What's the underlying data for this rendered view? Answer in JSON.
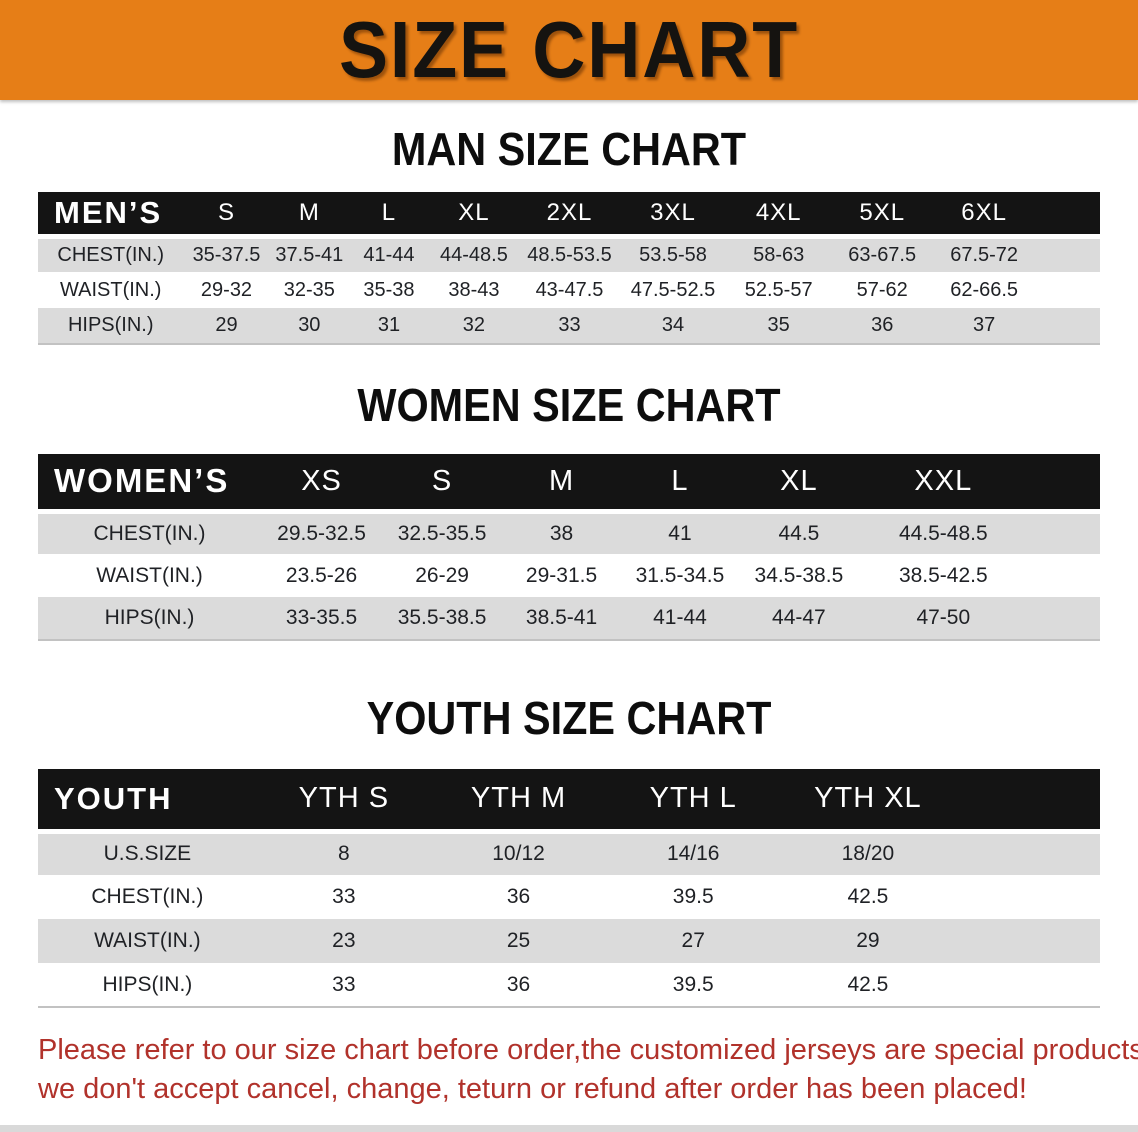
{
  "banner": {
    "title": "SIZE CHART"
  },
  "man_chart": {
    "heading": "MAN SIZE CHART",
    "table": {
      "group_label": "MEN’S",
      "sizes": [
        "S",
        "M",
        "L",
        "XL",
        "2XL",
        "3XL",
        "4XL",
        "5XL",
        "6XL"
      ],
      "rows": [
        {
          "label": "CHEST(IN.)",
          "values": [
            "35-37.5",
            "37.5-41",
            "41-44",
            "44-48.5",
            "48.5-53.5",
            "53.5-58",
            "58-63",
            "63-67.5",
            "67.5-72"
          ]
        },
        {
          "label": "WAIST(IN.)",
          "values": [
            "29-32",
            "32-35",
            "35-38",
            "38-43",
            "43-47.5",
            "47.5-52.5",
            "52.5-57",
            "57-62",
            "62-66.5"
          ]
        },
        {
          "label": "HIPS(IN.)",
          "values": [
            "29",
            "30",
            "31",
            "32",
            "33",
            "34",
            "35",
            "36",
            "37"
          ]
        }
      ]
    }
  },
  "women_chart": {
    "heading": "WOMEN SIZE CHART",
    "table": {
      "group_label": "WOMEN’S",
      "sizes": [
        "XS",
        "S",
        "M",
        "L",
        "XL",
        "XXL"
      ],
      "rows": [
        {
          "label": "CHEST(IN.)",
          "values": [
            "29.5-32.5",
            "32.5-35.5",
            "38",
            "41",
            "44.5",
            "44.5-48.5"
          ]
        },
        {
          "label": "WAIST(IN.)",
          "values": [
            "23.5-26",
            "26-29",
            "29-31.5",
            "31.5-34.5",
            "34.5-38.5",
            "38.5-42.5"
          ]
        },
        {
          "label": "HIPS(IN.)",
          "values": [
            "33-35.5",
            "35.5-38.5",
            "38.5-41",
            "41-44",
            "44-47",
            "47-50"
          ]
        }
      ]
    }
  },
  "youth_chart": {
    "heading": "YOUTH SIZE CHART",
    "table": {
      "group_label": "YOUTH",
      "sizes": [
        "YTH S",
        "YTH M",
        "YTH L",
        "YTH XL"
      ],
      "rows": [
        {
          "label": "U.S.SIZE",
          "values": [
            "8",
            "10/12",
            "14/16",
            "18/20"
          ]
        },
        {
          "label": "CHEST(IN.)",
          "values": [
            "33",
            "36",
            "39.5",
            "42.5"
          ]
        },
        {
          "label": "WAIST(IN.)",
          "values": [
            "23",
            "25",
            "27",
            "29"
          ]
        },
        {
          "label": "HIPS(IN.)",
          "values": [
            "33",
            "36",
            "39.5",
            "42.5"
          ]
        }
      ]
    }
  },
  "footnote": {
    "line1": "Please refer to our size chart before order,the customized jerseys are special products,",
    "line2": "we don't accept cancel, change, teturn or refund after order has been placed!"
  },
  "colors": {
    "banner_orange": "#E67E17",
    "header_black": "#141414",
    "row_gray": "#DBDBDB",
    "note_red": "#B1322B"
  }
}
